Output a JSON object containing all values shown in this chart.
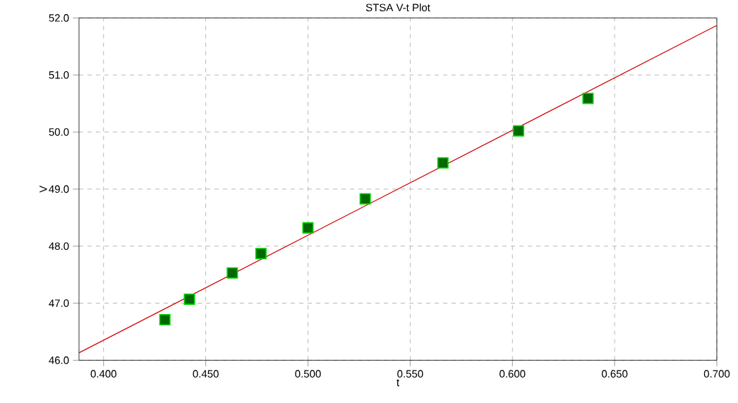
{
  "chart_data": {
    "type": "scatter",
    "title": "STSA V-t Plot",
    "xlabel": "t",
    "ylabel": "V",
    "series": [
      {
        "color": "#006a00",
        "x": [
          0.43,
          0.442,
          0.463,
          0.477,
          0.5,
          0.528,
          0.566,
          0.603,
          0.637
        ],
        "values": [
          46.71,
          47.07,
          47.53,
          47.87,
          48.32,
          48.83,
          49.46,
          50.02,
          50.59
        ],
        "marker": "square"
      },
      {
        "type": "line",
        "color": "#d00000",
        "x": [
          0.388,
          0.7
        ],
        "values": [
          46.13,
          51.87
        ],
        "marker": "none",
        "line_style": "solid"
      }
    ],
    "xlim": [
      0.388,
      0.7
    ],
    "ylim": [
      46.0,
      52.0
    ],
    "xticks": [
      {
        "value": 0.4,
        "label": "0.400"
      },
      {
        "value": 0.45,
        "label": "0.450"
      },
      {
        "value": 0.5,
        "label": "0.500"
      },
      {
        "value": 0.55,
        "label": "0.550"
      },
      {
        "value": 0.6,
        "label": "0.600"
      },
      {
        "value": 0.65,
        "label": "0.650"
      },
      {
        "value": 0.7,
        "label": "0.700"
      }
    ],
    "yticks": [
      {
        "value": 46,
        "label": "46.0"
      },
      {
        "value": 47,
        "label": "47.0"
      },
      {
        "value": 48,
        "label": "48.0"
      },
      {
        "value": 49,
        "label": "49.0"
      },
      {
        "value": 50,
        "label": "50.0"
      },
      {
        "value": 51,
        "label": "51.0"
      },
      {
        "value": 52,
        "label": "52.0"
      }
    ],
    "grid": true
  }
}
